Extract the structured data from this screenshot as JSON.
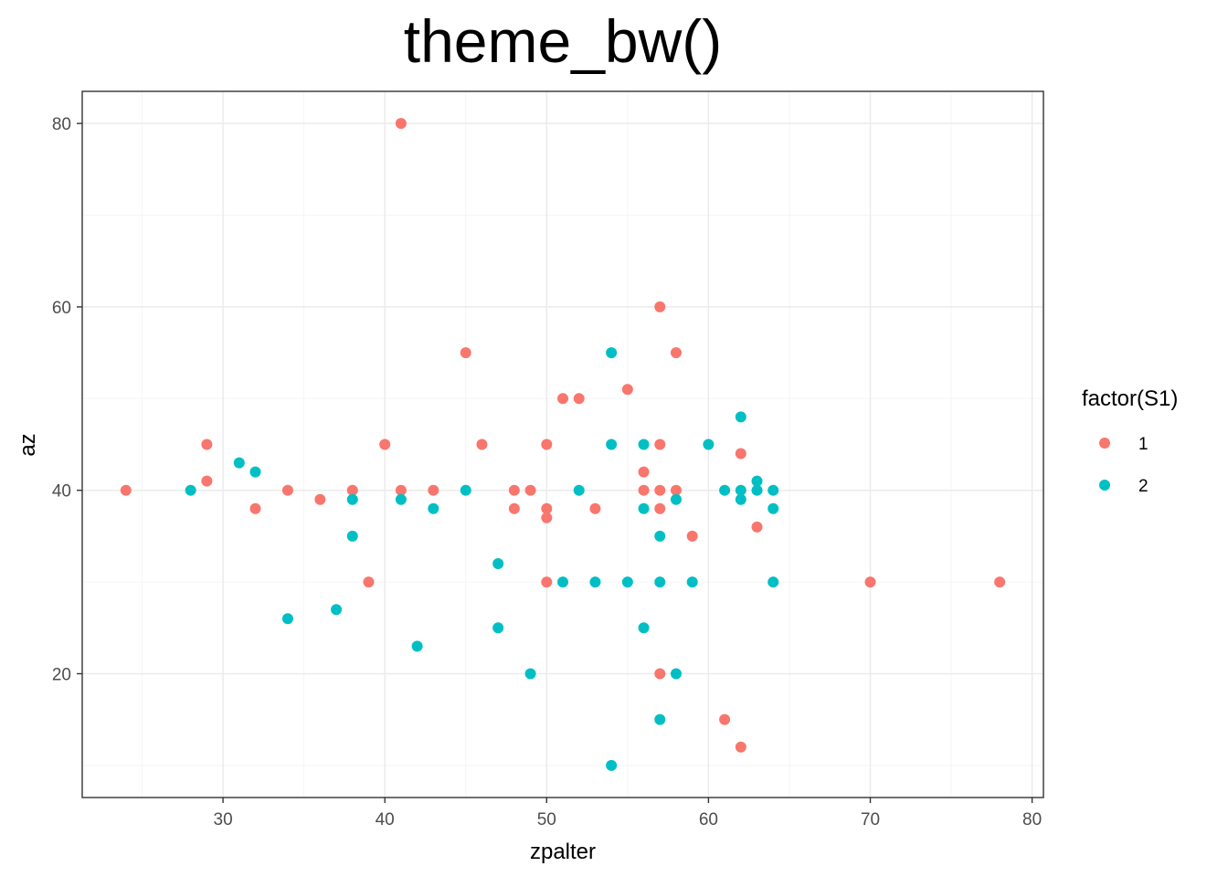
{
  "chart_data": {
    "type": "scatter",
    "title": "theme_bw()",
    "xlabel": "zpalter",
    "ylabel": "az",
    "xlim": [
      21.3,
      80.7
    ],
    "ylim": [
      6.5,
      83.5
    ],
    "x_major_ticks": [
      30,
      40,
      50,
      60,
      70,
      80
    ],
    "x_minor_ticks": [
      25,
      35,
      45,
      55,
      65,
      75
    ],
    "y_major_ticks": [
      20,
      40,
      60,
      80
    ],
    "y_minor_ticks": [
      10,
      30,
      50,
      70
    ],
    "x_tick_labels": [
      "30",
      "40",
      "50",
      "60",
      "70",
      "80"
    ],
    "y_tick_labels": [
      "20",
      "40",
      "60",
      "80"
    ],
    "grid": true,
    "legend": {
      "title": "factor(S1)",
      "placement": "right",
      "entries": [
        "1",
        "2"
      ]
    },
    "colors": {
      "1": "#F8766D",
      "2": "#00BFC4",
      "panel_border": "#333333",
      "grid_major": "#ebebeb",
      "grid_minor": "#f5f5f5"
    },
    "series": [
      {
        "name": "1",
        "points": [
          [
            24,
            40
          ],
          [
            29,
            45
          ],
          [
            29,
            41
          ],
          [
            32,
            38
          ],
          [
            34,
            40
          ],
          [
            36,
            39
          ],
          [
            38,
            40
          ],
          [
            39,
            30
          ],
          [
            40,
            45
          ],
          [
            41,
            80
          ],
          [
            41,
            40
          ],
          [
            43,
            40
          ],
          [
            45,
            55
          ],
          [
            46,
            45
          ],
          [
            48,
            40
          ],
          [
            48,
            38
          ],
          [
            49,
            40
          ],
          [
            50,
            45
          ],
          [
            50,
            38
          ],
          [
            50,
            37
          ],
          [
            50,
            30
          ],
          [
            51,
            50
          ],
          [
            52,
            50
          ],
          [
            53,
            38
          ],
          [
            55,
            51
          ],
          [
            56,
            42
          ],
          [
            56,
            40
          ],
          [
            57,
            60
          ],
          [
            57,
            45
          ],
          [
            57,
            40
          ],
          [
            57,
            38
          ],
          [
            57,
            20
          ],
          [
            58,
            55
          ],
          [
            58,
            40
          ],
          [
            59,
            35
          ],
          [
            61,
            15
          ],
          [
            62,
            44
          ],
          [
            62,
            12
          ],
          [
            63,
            36
          ],
          [
            70,
            30
          ],
          [
            78,
            30
          ]
        ]
      },
      {
        "name": "2",
        "points": [
          [
            28,
            40
          ],
          [
            31,
            43
          ],
          [
            32,
            42
          ],
          [
            34,
            26
          ],
          [
            37,
            27
          ],
          [
            38,
            39
          ],
          [
            38,
            35
          ],
          [
            41,
            39
          ],
          [
            42,
            23
          ],
          [
            43,
            38
          ],
          [
            45,
            40
          ],
          [
            47,
            32
          ],
          [
            47,
            25
          ],
          [
            49,
            20
          ],
          [
            51,
            30
          ],
          [
            52,
            40
          ],
          [
            53,
            30
          ],
          [
            54,
            55
          ],
          [
            54,
            45
          ],
          [
            54,
            10
          ],
          [
            55,
            30
          ],
          [
            56,
            45
          ],
          [
            56,
            38
          ],
          [
            56,
            25
          ],
          [
            57,
            35
          ],
          [
            57,
            30
          ],
          [
            57,
            15
          ],
          [
            58,
            39
          ],
          [
            58,
            20
          ],
          [
            59,
            30
          ],
          [
            60,
            45
          ],
          [
            61,
            40
          ],
          [
            62,
            48
          ],
          [
            62,
            40
          ],
          [
            62,
            39
          ],
          [
            63,
            41
          ],
          [
            63,
            40
          ],
          [
            64,
            40
          ],
          [
            64,
            38
          ],
          [
            64,
            30
          ]
        ]
      }
    ]
  }
}
